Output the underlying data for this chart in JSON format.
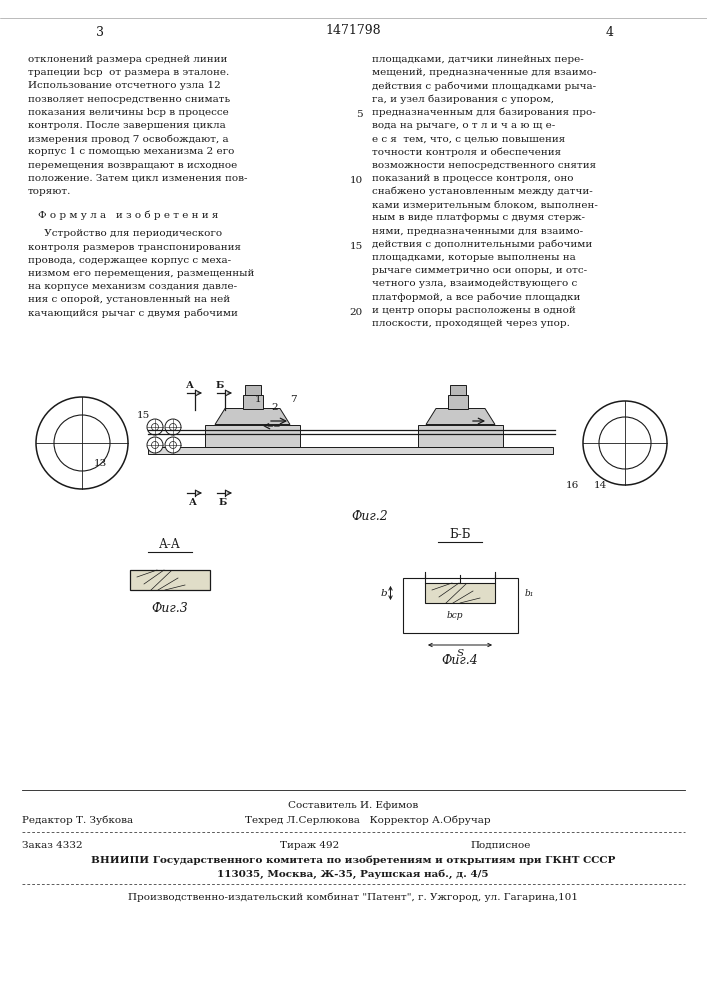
{
  "page_bg": "#ffffff",
  "text_color": "#1a1a1a",
  "page_number_left": "3",
  "page_number_center": "1471798",
  "page_number_right": "4",
  "col_left_text": [
    "отклонений размера средней линии",
    "трапеции bср  от размера в эталоне.",
    "Использование отсчетного узла 12",
    "позволяет непосредственно снимать",
    "показания величины bср в процессе",
    "контроля. После завершения цикла",
    "измерения провод 7 освобождают, а",
    "корпус 1 с помощью механизма 2 его",
    "перемещения возвращают в исходное",
    "положение. Затем цикл изменения пов-",
    "торяют."
  ],
  "formula_title": "Ф о р м у л а   и з о б р е т е н и я",
  "formula_text": [
    "     Устройство для периодического",
    "контроля размеров транспонирования",
    "провода, содержащее корпус с меха-",
    "низмом его перемещения, размещенный",
    "на корпусе механизм создания давле-",
    "ния с опорой, установленный на ней",
    "качающийся рычаг с двумя рабочими"
  ],
  "col_right_text": [
    "площадками, датчики линейных пере-",
    "мещений, предназначенные для взаимо-",
    "действия с рабочими площадками рыча-",
    "га, и узел базирования с упором,",
    "предназначенным для базирования про-",
    "вода на рычаге, о т л и ч а ю щ е-",
    "е с я  тем, что, с целью повышения",
    "точности контроля и обеспечения",
    "возможности непосредственного снятия",
    "показаний в процессе контроля, оно",
    "снабжено установленным между датчи-",
    "ками измерительным блоком, выполнен-",
    "ным в виде платформы с двумя стерж-",
    "нями, предназначенными для взаимо-",
    "действия с дополнительными рабочими",
    "площадками, которые выполнены на",
    "рычаге симметрично оси опоры, и отс-",
    "четного узла, взаимодействующего с",
    "платформой, а все рабочие площадки",
    "и центр опоры расположены в одной",
    "плоскости, проходящей через упор."
  ],
  "footer_line1": "Составитель И. Ефимов",
  "footer_label_editor": "Редактор Т. Зубкова",
  "footer_label_tech": "Техред Л.Серлюкова   Корректор А.Обручар",
  "footer_order": "Заказ 4332",
  "footer_copies": "Тираж 492",
  "footer_subscription": "Подписное",
  "footer_vniiipi": "ВНИИПИ Государственного комитета по изобретениям и открытиям при ГКНТ СССР",
  "footer_address": "113035, Москва, Ж-35, Раушская наб., д. 4/5",
  "footer_plant": "Производственно-издательский комбинат \"Патент\", г. Ужгород, ул. Гагарина,101"
}
